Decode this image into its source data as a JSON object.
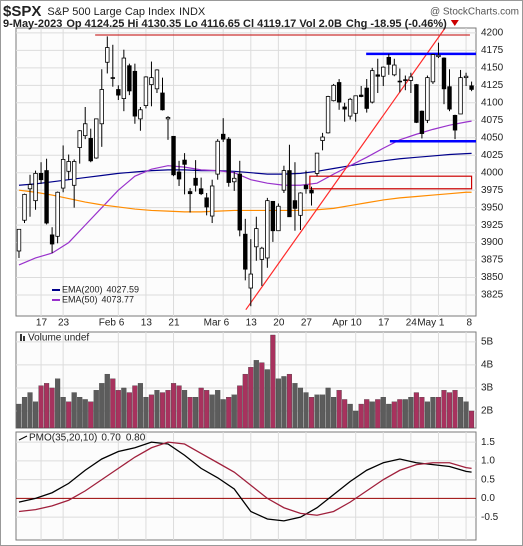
{
  "header": {
    "symbol": "$SPX",
    "name": "S&P 500 Large Cap Index",
    "exchange": "INDX",
    "site": "@ StockCharts.com",
    "date": "9-May-2023",
    "quote": "Op 4124.25 Hi 4130.35 Lo 4116.65 Cl 4119.17 Vol 2.0B",
    "change": "Chg -18.95 (-0.46%)"
  },
  "chart_data": [
    {
      "type": "candlestick",
      "color": "#000000",
      "grid": true,
      "legend": "lower-left",
      "xlim": [
        -0.54,
        82.8
      ],
      "xticks": [
        {
          "value": 4,
          "label": "17"
        },
        {
          "value": 8,
          "label": "23"
        },
        {
          "value": 18,
          "label": "Feb 6"
        },
        {
          "value": 23,
          "label": "13"
        },
        {
          "value": 28,
          "label": "21"
        },
        {
          "value": 37,
          "label": "Mar 6"
        },
        {
          "value": 42,
          "label": "13"
        },
        {
          "value": 47,
          "label": "20"
        },
        {
          "value": 52,
          "label": "27"
        },
        {
          "value": 61,
          "label": "Apr 10"
        },
        {
          "value": 66,
          "label": "17"
        },
        {
          "value": 71,
          "label": "24"
        },
        {
          "value": 76,
          "label": "May 1"
        },
        {
          "value": 81,
          "label": "8"
        }
      ],
      "ylim": [
        3795,
        4207
      ],
      "yticks": [
        3825,
        3850,
        3875,
        3900,
        3925,
        3950,
        3975,
        4000,
        4025,
        4050,
        4075,
        4100,
        4125,
        4150,
        4175,
        4200
      ],
      "open": [
        3888,
        3932,
        3977,
        3960,
        3999,
        4003,
        3911,
        3909,
        3978,
        4002,
        3982,
        4036,
        4053,
        4049,
        4021,
        4070,
        4158,
        4136,
        4119,
        4106,
        4153,
        4145,
        4077,
        4096,
        4126,
        4120,
        4114,
        4077,
        4052,
        4001,
        4018,
        3973,
        3992,
        3977,
        3964,
        3938,
        3998,
        4055,
        4048,
        3987,
        3998,
        3912,
        3835,
        3894,
        3876,
        3878,
        3959,
        3917,
        3975,
        4003,
        3960,
        3939,
        3982,
        3975,
        3999,
        4046,
        4057,
        4103,
        4129,
        4094,
        4081,
        4085,
        4111,
        4121,
        4101,
        4140,
        4138,
        4165,
        4140,
        4131,
        4132,
        4132,
        4126,
        4088,
        4075,
        4130,
        4166,
        4164,
        4123,
        4082,
        4084,
        4136,
        4124.25
      ],
      "high": [
        3919,
        3970,
        3997,
        4003,
        4015,
        4020,
        3922,
        3973,
        4039,
        4026,
        4019,
        4061,
        4094,
        4063,
        4077,
        4148,
        4195,
        4183,
        4125,
        4176,
        4156,
        4156,
        4094,
        4138,
        4159,
        4148,
        4136,
        4081,
        4052,
        4017,
        4028,
        3978,
        4018,
        3993,
        3971,
        3990,
        4048,
        4078,
        4051,
        4001,
        4017,
        3934,
        3905,
        3937,
        3894,
        3964,
        3959,
        3956,
        4010,
        4040,
        4015,
        3972,
        4003,
        3980,
        4028,
        4057,
        4110,
        4127,
        4134,
        4100,
        4107,
        4110,
        4124,
        4134,
        4150,
        4163,
        4152,
        4170,
        4163,
        4149,
        4139,
        4143,
        4127,
        4089,
        4139,
        4170,
        4186,
        4165,
        4148,
        4083,
        4147,
        4143,
        4130.35
      ],
      "low": [
        3878,
        3928,
        3937,
        3947,
        3984,
        3926,
        3885,
        3899,
        3972,
        3990,
        3950,
        4013,
        4048,
        4015,
        4020,
        4037,
        4142,
        4123,
        4104,
        4088,
        4111,
        4070,
        4060,
        4092,
        4095,
        4114,
        4089,
        4047,
        3995,
        3981,
        3969,
        3943,
        3973,
        3968,
        3939,
        3928,
        3990,
        4044,
        3980,
        3974,
        3909,
        3846,
        3809,
        3874,
        3838,
        3864,
        3901,
        3917,
        3971,
        3937,
        3917,
        3918,
        3970,
        3953,
        3995,
        4032,
        4056,
        4102,
        4090,
        4073,
        4076,
        4073,
        4108,
        4086,
        4099,
        4114,
        4124,
        4140,
        4138,
        4115,
        4118,
        4114,
        4071,
        4049,
        4071,
        4127,
        4164,
        4098,
        4088,
        4048,
        4084,
        4124,
        4116.65
      ],
      "close": [
        3919,
        3969,
        3983,
        3999,
        3990,
        3928,
        3898,
        3972,
        4019,
        4016,
        4016,
        4060,
        4070,
        4017,
        4077,
        4119,
        4179,
        4136,
        4111,
        4164,
        4117,
        4081,
        4090,
        4137,
        4136,
        4147,
        4090,
        4079,
        3997,
        3991,
        4012,
        3970,
        3982,
        3970,
        3951,
        3981,
        4045,
        4048,
        3986,
        3992,
        3918,
        3862,
        3855,
        3920,
        3892,
        3960,
        3917,
        3952,
        4003,
        3937,
        3949,
        3971,
        3977,
        3971,
        4028,
        4051,
        4109,
        4125,
        4101,
        4091,
        4105,
        4110,
        4109,
        4092,
        4146,
        4138,
        4151,
        4155,
        4154,
        4130,
        4133,
        4137,
        4072,
        4056,
        4136,
        4169,
        4168,
        4120,
        4091,
        4061,
        4136,
        4138,
        4119.17
      ],
      "series": [
        {
          "name": "EMA(200)",
          "color": "#00008b",
          "x": [
            0,
            3,
            6,
            9,
            12,
            15,
            18,
            21,
            24,
            27,
            30,
            33,
            36,
            39,
            42,
            45,
            48,
            51,
            54,
            57,
            60,
            63,
            66,
            69,
            72,
            75,
            78,
            81,
            82
          ],
          "values": [
            3982,
            3984,
            3987,
            3990,
            3993,
            3996,
            3999,
            4001,
            4003,
            4004,
            4004,
            4003,
            4003,
            4002,
            4000,
            3998,
            3998,
            3999,
            4002,
            4006,
            4010,
            4014,
            4017,
            4020,
            4022,
            4024,
            4026,
            4027.3,
            4027.59
          ]
        },
        {
          "name": "EMA(50)",
          "color": "#9932cc",
          "x": [
            0,
            3,
            6,
            9,
            12,
            15,
            18,
            21,
            24,
            27,
            30,
            33,
            36,
            39,
            42,
            45,
            48,
            51,
            54,
            57,
            60,
            63,
            66,
            69,
            72,
            75,
            78,
            81,
            82
          ],
          "values": [
            3868,
            3878,
            3885,
            3900,
            3925,
            3950,
            3975,
            3995,
            4005,
            4010,
            4008,
            4004,
            4003,
            4000,
            3990,
            3985,
            3982,
            3982,
            3985,
            3998,
            4010,
            4022,
            4035,
            4047,
            4055,
            4062,
            4068,
            4072.5,
            4073.77
          ]
        },
        {
          "color": "#ff8c00",
          "x": [
            0,
            3,
            6,
            9,
            12,
            15,
            18,
            21,
            24,
            27,
            30,
            33,
            36,
            39,
            42,
            45,
            48,
            51,
            54,
            57,
            60,
            63,
            66,
            69,
            72,
            75,
            78,
            81,
            82
          ],
          "values": [
            3975,
            3972,
            3968,
            3963,
            3958,
            3954,
            3951,
            3948,
            3946,
            3945,
            3944,
            3944,
            3945,
            3946,
            3946,
            3946,
            3946,
            3946,
            3947,
            3949,
            3953,
            3957,
            3961,
            3964,
            3966,
            3968,
            3970,
            3972,
            3972
          ]
        }
      ],
      "annotations": {
        "trendlines": [
          {
            "x": [
              41.1,
              77.2
            ],
            "y": [
              3804,
              4207
            ],
            "color": "#ff2a2a"
          }
        ],
        "hlines": [
          {
            "value": 4170,
            "x": [
              62.9,
              82.8
            ],
            "color": "#0000ff"
          },
          {
            "value": 4045,
            "x": [
              67.2,
              82.8
            ],
            "color": "#0000ff"
          },
          {
            "value": 4197,
            "x": [
              13.8,
              81.7
            ],
            "color": "#cc3333"
          }
        ],
        "boxes": [
          {
            "x": [
              52.7,
              82
            ],
            "y": [
              3977,
              3995
            ],
            "color": "#cc0000"
          }
        ]
      }
    },
    {
      "type": "bar",
      "title": "Volume undef",
      "up_color": "#5c5c5c",
      "down_color": "#a8325e",
      "ylim": [
        1.26,
        5.43
      ],
      "yticks": [
        {
          "value": 2,
          "label": "2B"
        },
        {
          "value": 3,
          "label": "3B"
        },
        {
          "value": 4,
          "label": "4B"
        },
        {
          "value": 5,
          "label": "5B"
        }
      ],
      "values": [
        2.3,
        2.6,
        2.8,
        2.4,
        3.1,
        3.2,
        3.0,
        3.4,
        2.6,
        2.4,
        2.8,
        2.6,
        2.5,
        2.4,
        2.9,
        3.2,
        3.6,
        3.4,
        2.9,
        3.0,
        2.8,
        3.1,
        3.2,
        2.6,
        2.7,
        2.9,
        2.8,
        2.9,
        3.2,
        3.1,
        2.9,
        2.6,
        2.6,
        3.0,
        2.9,
        2.7,
        2.9,
        2.5,
        2.6,
        2.7,
        3.1,
        3.6,
        3.9,
        4.2,
        4.1,
        3.8,
        5.3,
        3.4,
        3.5,
        3.6,
        3.2,
        3.0,
        2.8,
        2.6,
        2.7,
        2.7,
        3.0,
        2.6,
        2.9,
        2.5,
        2.3,
        2.0,
        2.3,
        2.5,
        2.4,
        2.5,
        2.6,
        2.3,
        2.4,
        2.5,
        2.5,
        2.6,
        2.8,
        2.6,
        2.4,
        2.6,
        2.6,
        2.9,
        2.8,
        2.9,
        2.6,
        2.4,
        2.0
      ]
    },
    {
      "type": "line",
      "title": "PMO(35,20,10)",
      "readout": [
        "0.70",
        "0.80"
      ],
      "zero_line": "#990000",
      "ylim": [
        -1.11,
        1.77
      ],
      "yticks": [
        {
          "value": 1.5,
          "label": "1.5"
        },
        {
          "value": 1,
          "label": "1.0"
        },
        {
          "value": 0.5,
          "label": "0.5"
        },
        {
          "value": 0,
          "label": "0.0"
        },
        {
          "value": -0.5,
          "label": "-0.5"
        }
      ],
      "series": [
        {
          "color": "#000000",
          "x": [
            0,
            3,
            6,
            9,
            12,
            15,
            18,
            21,
            24,
            27,
            30,
            33,
            36,
            39,
            42,
            45,
            48,
            51,
            54,
            57,
            60,
            63,
            66,
            69,
            72,
            75,
            78,
            81,
            82
          ],
          "values": [
            -0.1,
            0.0,
            0.15,
            0.4,
            0.75,
            1.05,
            1.25,
            1.35,
            1.5,
            1.45,
            1.15,
            0.8,
            0.55,
            0.25,
            -0.35,
            -0.55,
            -0.6,
            -0.5,
            -0.25,
            0.1,
            0.45,
            0.75,
            0.95,
            1.05,
            0.95,
            0.9,
            0.85,
            0.72,
            0.7
          ]
        },
        {
          "color": "#a0203c",
          "x": [
            0,
            3,
            6,
            9,
            12,
            15,
            18,
            21,
            24,
            27,
            30,
            33,
            36,
            39,
            42,
            45,
            48,
            51,
            54,
            57,
            60,
            63,
            66,
            69,
            72,
            75,
            78,
            81,
            82
          ],
          "values": [
            -0.35,
            -0.3,
            -0.2,
            -0.05,
            0.2,
            0.5,
            0.8,
            1.1,
            1.35,
            1.5,
            1.45,
            1.2,
            0.95,
            0.7,
            0.35,
            0.0,
            -0.25,
            -0.4,
            -0.45,
            -0.35,
            -0.1,
            0.2,
            0.5,
            0.75,
            0.9,
            0.95,
            0.95,
            0.82,
            0.8
          ]
        }
      ]
    }
  ]
}
